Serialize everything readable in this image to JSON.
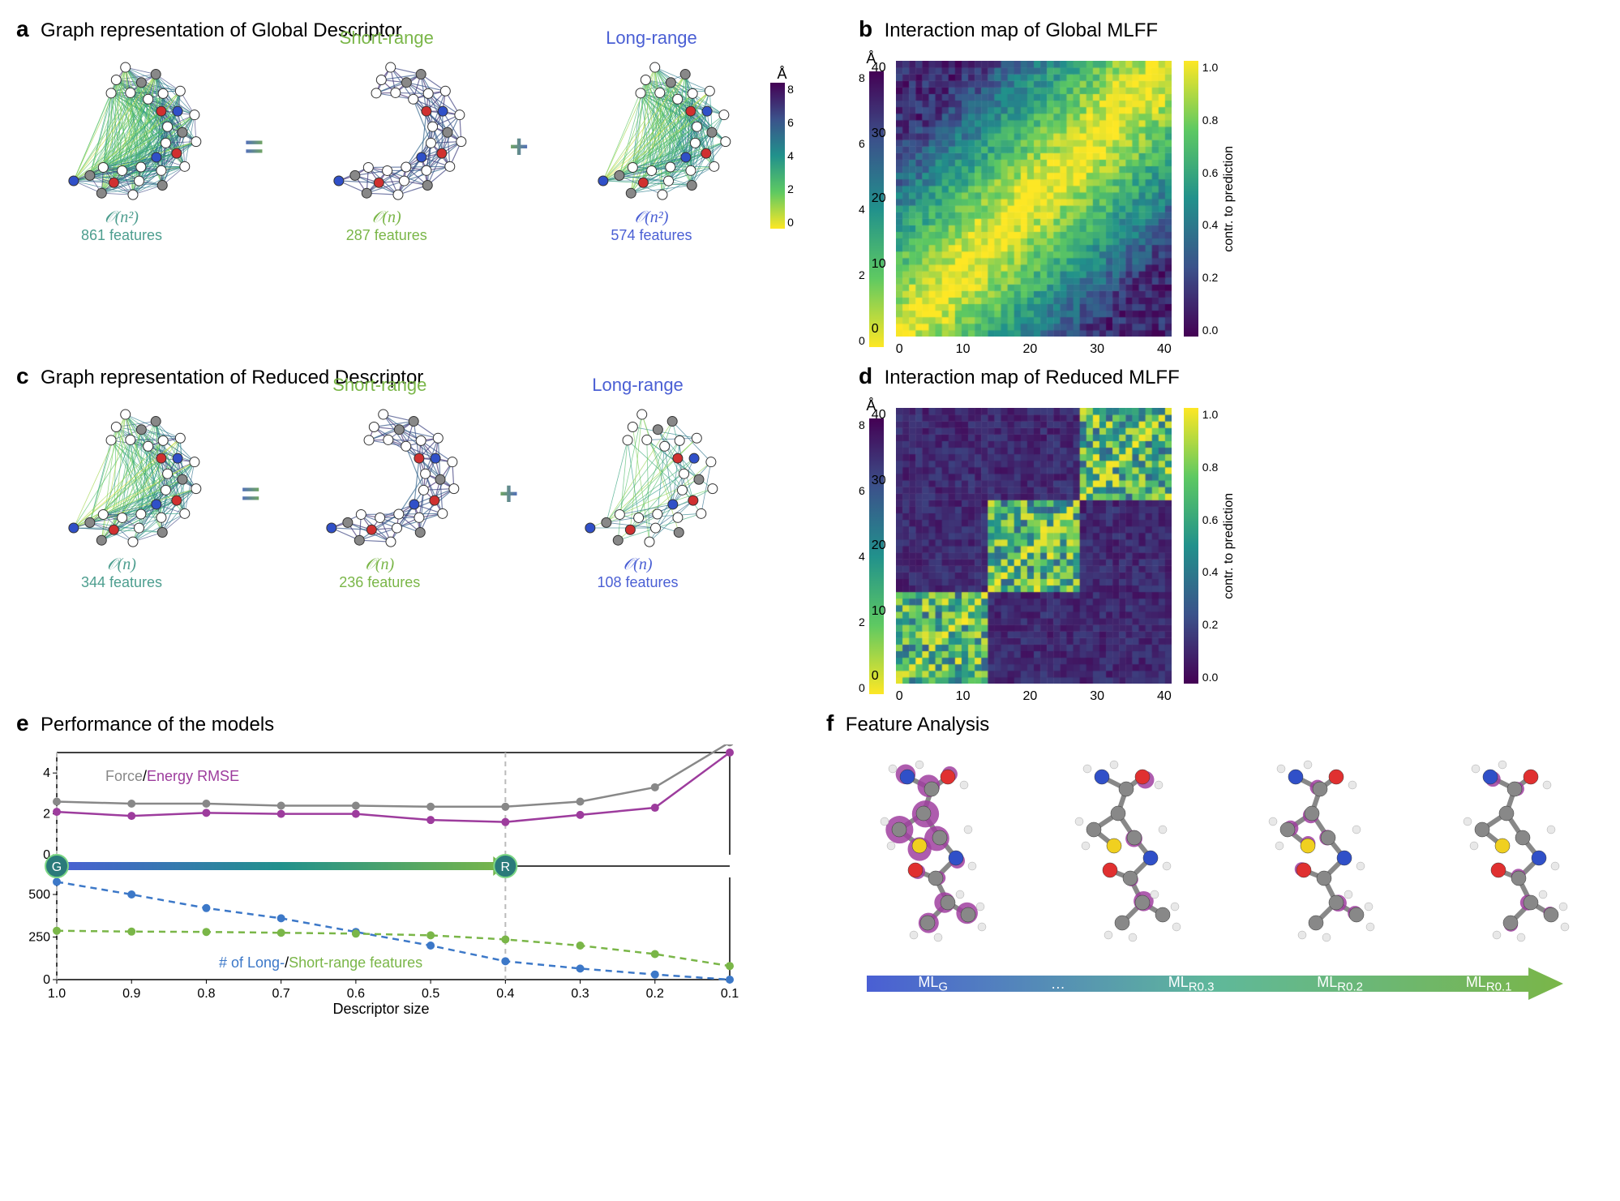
{
  "panel_a": {
    "label": "a",
    "title": "Graph representation of Global Descriptor",
    "blocks": [
      {
        "complexity": "𝒪(n²)",
        "features": "861 features",
        "color": "#4d9e8f"
      },
      {
        "subtitle": "Short-range",
        "complexity": "𝒪(n)",
        "features": "287 features",
        "color": "#7ab648"
      },
      {
        "subtitle": "Long-range",
        "complexity": "𝒪(n²)",
        "features": "574 features",
        "color": "#4a5fd4"
      }
    ],
    "op1": "=",
    "op2": "+",
    "colorbar": {
      "unit": "Å",
      "ticks": [
        "8",
        "6",
        "4",
        "2",
        "0"
      ]
    }
  },
  "panel_b": {
    "label": "b",
    "title": "Interaction map of Global MLFF",
    "heatmap": {
      "size": 42,
      "axis_ticks": [
        "0",
        "10",
        "20",
        "30",
        "40"
      ],
      "cb_left_unit": "Å",
      "cb_left_ticks": [
        "8",
        "6",
        "4",
        "2",
        "0"
      ],
      "cb_right_label": "contr. to prediction",
      "cb_right_ticks": [
        "0.0",
        "0.2",
        "0.4",
        "0.6",
        "0.8",
        "1.0"
      ],
      "seed": 1
    }
  },
  "panel_c": {
    "label": "c",
    "title": "Graph representation of Reduced Descriptor",
    "blocks": [
      {
        "complexity": "𝒪(n)",
        "features": "344 features",
        "color": "#4d9e8f"
      },
      {
        "subtitle": "Short-range",
        "complexity": "𝒪(n)",
        "features": "236 features",
        "color": "#7ab648"
      },
      {
        "subtitle": "Long-range",
        "complexity": "𝒪(n)",
        "features": "108 features",
        "color": "#4a5fd4"
      }
    ],
    "op1": "=",
    "op2": "+"
  },
  "panel_d": {
    "label": "d",
    "title": "Interaction map of Reduced MLFF",
    "heatmap": {
      "size": 42,
      "axis_ticks": [
        "0",
        "10",
        "20",
        "30",
        "40"
      ],
      "cb_left_unit": "Å",
      "cb_left_ticks": [
        "8",
        "6",
        "4",
        "2",
        "0"
      ],
      "cb_right_label": "contr. to prediction",
      "cb_right_ticks": [
        "0.0",
        "0.2",
        "0.4",
        "0.6",
        "0.8",
        "1.0"
      ],
      "seed": 2
    }
  },
  "panel_e": {
    "label": "e",
    "title": "Performance of the models",
    "chart": {
      "x_values": [
        1.0,
        0.9,
        0.8,
        0.7,
        0.6,
        0.5,
        0.4,
        0.3,
        0.2,
        0.1
      ],
      "force_rmse": {
        "values": [
          2.6,
          2.5,
          2.5,
          2.4,
          2.4,
          2.35,
          2.35,
          2.6,
          3.3,
          5.5
        ],
        "color": "#888888",
        "label": "Force"
      },
      "energy_rmse": {
        "values": [
          2.1,
          1.9,
          2.05,
          2.0,
          2.0,
          1.7,
          1.6,
          1.95,
          2.3,
          5.0
        ],
        "color": "#9d3c9d",
        "label": "Energy RMSE"
      },
      "long_range": {
        "values": [
          574,
          500,
          420,
          360,
          280,
          200,
          108,
          65,
          30,
          0
        ],
        "color": "#3c78c8",
        "label": "# of Long-"
      },
      "short_range": {
        "values": [
          287,
          282,
          280,
          275,
          270,
          260,
          236,
          200,
          150,
          80
        ],
        "color": "#7ab648",
        "label": "Short-range features"
      },
      "xlabel": "Descriptor size",
      "top_ylim": [
        0,
        5
      ],
      "bottom_ylim": [
        0,
        600
      ],
      "top_yticks": [
        "0",
        "2",
        "4"
      ],
      "bottom_yticks": [
        "0",
        "250",
        "500"
      ],
      "markers": {
        "G": {
          "x": 1.0,
          "label": "G"
        },
        "R": {
          "x": 0.4,
          "label": "R"
        }
      },
      "legend_top": "Force/Energy RMSE",
      "legend_bottom": "# of Long-/Short-range features"
    }
  },
  "panel_f": {
    "label": "f",
    "title": "Feature Analysis",
    "molecules": [
      {
        "label": "ML_G",
        "density": 1.0
      },
      {
        "label": "ML_R0.3",
        "density": 0.6
      },
      {
        "label": "ML_R0.2",
        "density": 0.4
      },
      {
        "label": "ML_R0.1",
        "density": 0.2
      }
    ],
    "arrow_labels": [
      "ML_G",
      "…",
      "ML_R0.3",
      "ML_R0.2",
      "ML_R0.1"
    ],
    "atom_colors": {
      "C": "#888888",
      "H": "#e8e8e8",
      "N": "#3050c8",
      "O": "#e03030",
      "S": "#f0d020",
      "feature": "#a040a0"
    }
  },
  "node_colors": {
    "white": "#ffffff",
    "gray": "#888888",
    "red": "#d03030",
    "blue": "#3050c8"
  }
}
